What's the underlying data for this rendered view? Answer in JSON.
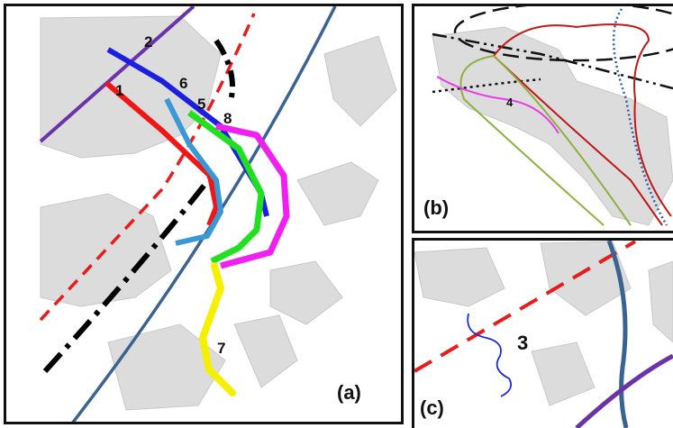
{
  "panels": {
    "a": {
      "label": "(a)",
      "tracks": {
        "t1": "1",
        "t2": "2",
        "t5": "5",
        "t6": "6",
        "t7": "7",
        "t8": "8"
      }
    },
    "b": {
      "label": "(b)",
      "tracks": {
        "t4": "4"
      }
    },
    "c": {
      "label": "(c)",
      "tracks": {
        "t3": "3"
      }
    }
  }
}
